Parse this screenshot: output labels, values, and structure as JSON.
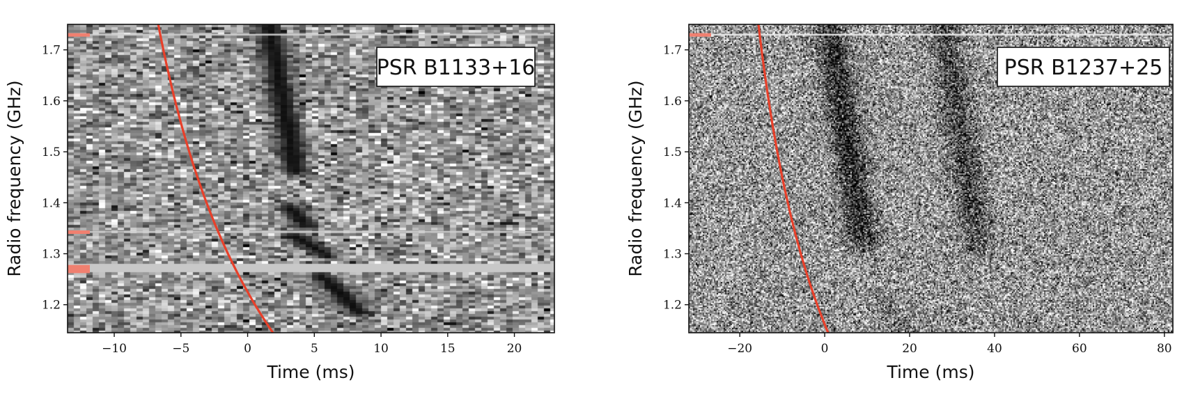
{
  "chart_data": [
    {
      "type": "heatmap",
      "label": "PSR B1133+16",
      "xlabel": "Time (ms)",
      "ylabel": "Radio frequency (GHz)",
      "xlim": [
        -13.5,
        23
      ],
      "ylim": [
        1.145,
        1.75
      ],
      "xticks": [
        -10,
        -5,
        0,
        5,
        10,
        15,
        20
      ],
      "yticks": [
        1.2,
        1.3,
        1.4,
        1.5,
        1.6,
        1.7
      ],
      "background": "coarse",
      "dispersion_curve": {
        "t_at_top_ms": -6.7,
        "t_at_bottom_ms": 1.9,
        "color": "#e8402a"
      },
      "flagged_channels_ghz": [
        1.73,
        1.343,
        1.27
      ],
      "flagged_band_ghz": [
        1.262,
        1.278
      ],
      "pulse_components": [
        {
          "t_top": 1.6,
          "t_bottom": 3.6,
          "f_top": 1.75,
          "f_bottom": 1.46
        },
        {
          "t_top": 3.2,
          "t_bottom": 4.4,
          "f_top": 1.39,
          "f_bottom": 1.355
        },
        {
          "t_top": 3.4,
          "t_bottom": 5.8,
          "f_top": 1.335,
          "f_bottom": 1.3
        },
        {
          "t_top": 5.6,
          "t_bottom": 8.4,
          "f_top": 1.255,
          "f_bottom": 1.185
        }
      ]
    },
    {
      "type": "heatmap",
      "label": "PSR B1237+25",
      "xlabel": "Time (ms)",
      "ylabel": "Radio frequency (GHz)",
      "xlim": [
        -32,
        82
      ],
      "ylim": [
        1.145,
        1.75
      ],
      "xticks": [
        -20,
        0,
        20,
        40,
        60,
        80
      ],
      "yticks": [
        1.2,
        1.3,
        1.4,
        1.5,
        1.6,
        1.7
      ],
      "background": "fine",
      "dispersion_curve": {
        "t_at_top_ms": -15.6,
        "t_at_bottom_ms": 0.8,
        "color": "#e8402a"
      },
      "flagged_channels_ghz": [
        1.73
      ],
      "pulse_components": [
        {
          "t_top": 1,
          "t_bottom": 9,
          "f_top": 1.75,
          "f_bottom": 1.33,
          "strength": 0.85
        },
        {
          "t_top": 28,
          "t_bottom": 36,
          "f_top": 1.75,
          "f_bottom": 1.32,
          "strength": 0.6
        },
        {
          "t_top": 14,
          "t_bottom": 20,
          "f_top": 1.2,
          "f_bottom": 1.145,
          "strength": 0.25
        }
      ]
    }
  ]
}
